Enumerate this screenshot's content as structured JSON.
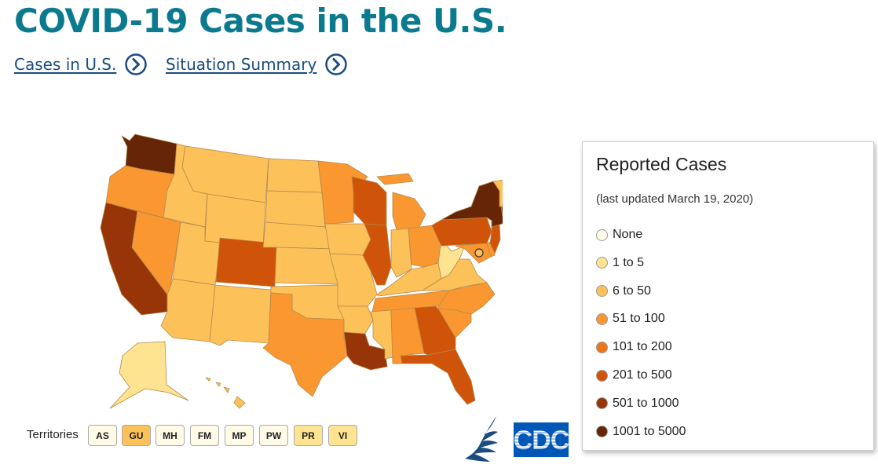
{
  "title": "COVID-19 Cases in the U.S.",
  "links": [
    {
      "label": "Cases in U.S.",
      "icon": "chevron-right-circle-icon"
    },
    {
      "label": "Situation Summary",
      "icon": "chevron-right-circle-icon"
    }
  ],
  "legend": {
    "title": "Reported Cases",
    "updated": "(last updated March 19, 2020)",
    "items": [
      {
        "label": "None",
        "color": "#fffbe6"
      },
      {
        "label": "1 to 5",
        "color": "#fee391"
      },
      {
        "label": "6 to 50",
        "color": "#fdc15a"
      },
      {
        "label": "51 to 100",
        "color": "#fb9731"
      },
      {
        "label": "101 to 200",
        "color": "#ee7418"
      },
      {
        "label": "201 to 500",
        "color": "#cf5309"
      },
      {
        "label": "501 to 1000",
        "color": "#983508"
      },
      {
        "label": "1001 to 5000",
        "color": "#662506"
      }
    ]
  },
  "territories": {
    "label": "Territories",
    "items": [
      {
        "code": "AS",
        "color": "#fffbe6"
      },
      {
        "code": "GU",
        "color": "#fdc15a"
      },
      {
        "code": "MH",
        "color": "#fffbe6"
      },
      {
        "code": "FM",
        "color": "#fffbe6"
      },
      {
        "code": "MP",
        "color": "#fffbe6"
      },
      {
        "code": "PW",
        "color": "#fffbe6"
      },
      {
        "code": "PR",
        "color": "#fee391"
      },
      {
        "code": "VI",
        "color": "#fee391"
      }
    ]
  },
  "logos": {
    "hhs": "hhs-eagle-icon",
    "cdc": "CDC"
  }
}
